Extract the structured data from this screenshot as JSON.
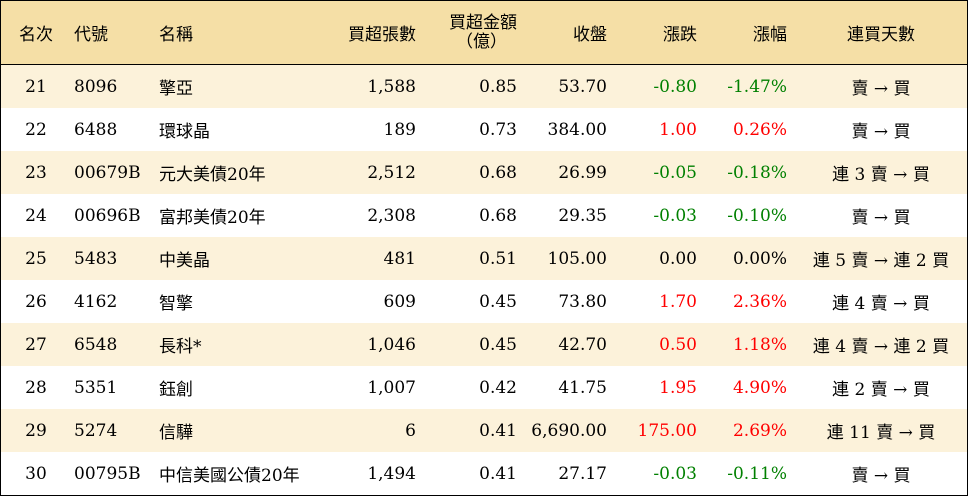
{
  "colors": {
    "header_bg": "#f5dfa6",
    "odd_row_bg": "#fcf2da",
    "up": "#ff0000",
    "down": "#008000"
  },
  "headers": {
    "rank": "名次",
    "code": "代號",
    "name": "名稱",
    "volume": "買超張數",
    "amount_line1": "買超金額",
    "amount_line2": "（億）",
    "close": "收盤",
    "change": "漲跌",
    "pct": "漲幅",
    "days": "連買天數"
  },
  "rows": [
    {
      "rank": "21",
      "code": "8096",
      "name": "擎亞",
      "volume": "1,588",
      "amount": "0.85",
      "close": "53.70",
      "change": "-0.80",
      "pct": "-1.47%",
      "days": "賣 → 買",
      "dir": "neg"
    },
    {
      "rank": "22",
      "code": "6488",
      "name": "環球晶",
      "volume": "189",
      "amount": "0.73",
      "close": "384.00",
      "change": "1.00",
      "pct": "0.26%",
      "days": "賣 → 買",
      "dir": "pos"
    },
    {
      "rank": "23",
      "code": "00679B",
      "name": "元大美債20年",
      "volume": "2,512",
      "amount": "0.68",
      "close": "26.99",
      "change": "-0.05",
      "pct": "-0.18%",
      "days": "連 3 賣 → 買",
      "dir": "neg"
    },
    {
      "rank": "24",
      "code": "00696B",
      "name": "富邦美債20年",
      "volume": "2,308",
      "amount": "0.68",
      "close": "29.35",
      "change": "-0.03",
      "pct": "-0.10%",
      "days": "賣 → 買",
      "dir": "neg"
    },
    {
      "rank": "25",
      "code": "5483",
      "name": "中美晶",
      "volume": "481",
      "amount": "0.51",
      "close": "105.00",
      "change": "0.00",
      "pct": "0.00%",
      "days": "連 5 賣 → 連 2 買",
      "dir": "zero"
    },
    {
      "rank": "26",
      "code": "4162",
      "name": "智擎",
      "volume": "609",
      "amount": "0.45",
      "close": "73.80",
      "change": "1.70",
      "pct": "2.36%",
      "days": "連 4 賣 → 買",
      "dir": "pos"
    },
    {
      "rank": "27",
      "code": "6548",
      "name": "長科*",
      "volume": "1,046",
      "amount": "0.45",
      "close": "42.70",
      "change": "0.50",
      "pct": "1.18%",
      "days": "連 4 賣 → 連 2 買",
      "dir": "pos"
    },
    {
      "rank": "28",
      "code": "5351",
      "name": "鈺創",
      "volume": "1,007",
      "amount": "0.42",
      "close": "41.75",
      "change": "1.95",
      "pct": "4.90%",
      "days": "連 2 賣 → 買",
      "dir": "pos"
    },
    {
      "rank": "29",
      "code": "5274",
      "name": "信驊",
      "volume": "6",
      "amount": "0.41",
      "close": "6,690.00",
      "change": "175.00",
      "pct": "2.69%",
      "days": "連 11 賣 → 買",
      "dir": "pos"
    },
    {
      "rank": "30",
      "code": "00795B",
      "name": "中信美國公債20年",
      "volume": "1,494",
      "amount": "0.41",
      "close": "27.17",
      "change": "-0.03",
      "pct": "-0.11%",
      "days": "賣 → 買",
      "dir": "neg"
    }
  ]
}
